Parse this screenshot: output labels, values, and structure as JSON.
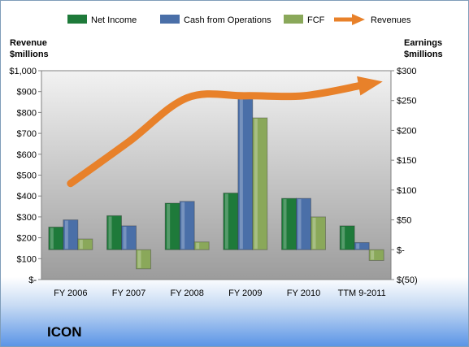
{
  "chart_data": {
    "type": "bar",
    "categories": [
      "FY 2006",
      "FY 2007",
      "FY 2008",
      "FY 2009",
      "FY 2010",
      "TTM 9-2011"
    ],
    "series": [
      {
        "name": "Net Income",
        "axis": "right",
        "color": "#1e7a3a",
        "values": [
          38,
          57,
          78,
          95,
          86,
          40
        ]
      },
      {
        "name": "Cash from Operations",
        "axis": "right",
        "color": "#4a6fa8",
        "values": [
          50,
          40,
          81,
          255,
          86,
          12
        ]
      },
      {
        "name": "FCF",
        "axis": "right",
        "color": "#8aa85a",
        "values": [
          18,
          -32,
          13,
          221,
          55,
          -18
        ]
      },
      {
        "name": "Revenues",
        "axis": "left",
        "type": "line",
        "color": "#e8812a",
        "values": [
          460,
          660,
          870,
          880,
          880,
          930
        ]
      }
    ],
    "left_axis": {
      "title_line1": "Revenue",
      "title_line2": "$millions",
      "ylim": [
        0,
        1000
      ],
      "ticks": [
        0,
        100,
        200,
        300,
        400,
        500,
        600,
        700,
        800,
        900,
        1000
      ],
      "tick_labels": [
        "$-",
        "$100",
        "$200",
        "$300",
        "$400",
        "$500",
        "$600",
        "$700",
        "$800",
        "$900",
        "$1,000"
      ]
    },
    "right_axis": {
      "title_line1": "Earnings",
      "title_line2": "$millions",
      "ylim": [
        -50,
        300
      ],
      "ticks": [
        -50,
        0,
        50,
        100,
        150,
        200,
        250,
        300
      ],
      "tick_labels": [
        "$(50)",
        "$-",
        "$50",
        "$100",
        "$150",
        "$200",
        "$250",
        "$300"
      ]
    },
    "legend_position": "top",
    "grid": false,
    "company_label": "ICON"
  }
}
